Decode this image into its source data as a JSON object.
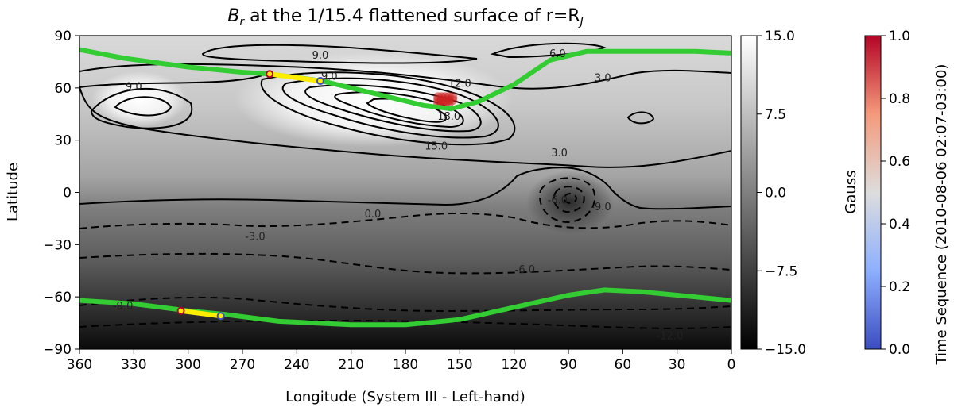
{
  "chart_data": {
    "type": "heatmap",
    "title": {
      "prefix": "B",
      "sub": "r",
      "mid": " at the 1/15.4 flattened surface of r=R",
      "sub2": "J"
    },
    "xlabel": "Longitude (System III - Left-hand)",
    "ylabel": "Latitude",
    "xlim": [
      360,
      0
    ],
    "ylim": [
      -90,
      90
    ],
    "xticks": [
      "360",
      "330",
      "300",
      "270",
      "240",
      "210",
      "180",
      "150",
      "120",
      "90",
      "60",
      "30",
      "0"
    ],
    "yticks": [
      "90",
      "60",
      "30",
      "0",
      "−30",
      "−60",
      "−90"
    ],
    "colorbar_gauss": {
      "label": "Gauss",
      "range": [
        -15,
        15
      ],
      "colormap": "gray",
      "ticks": [
        "15.0",
        "7.5",
        "0.0",
        "−7.5",
        "−15.0"
      ]
    },
    "colorbar_time": {
      "label": "Time Sequence (2010-08-06 02:07-03:00)",
      "range": [
        0,
        1
      ],
      "colormap": "coolwarm",
      "ticks": [
        "1.0",
        "0.8",
        "0.6",
        "0.4",
        "0.2",
        "0.0"
      ]
    },
    "contour_labels": [
      {
        "text": "9.0",
        "lon": 227,
        "lat": 79
      },
      {
        "text": "9.0",
        "lon": 222,
        "lat": 67
      },
      {
        "text": "6.0",
        "lon": 96,
        "lat": 80
      },
      {
        "text": "3.0",
        "lon": 71,
        "lat": 66
      },
      {
        "text": "9.0",
        "lon": 330,
        "lat": 61
      },
      {
        "text": "12.0",
        "lon": 150,
        "lat": 63
      },
      {
        "text": "18.0",
        "lon": 156,
        "lat": 44
      },
      {
        "text": "15.0",
        "lon": 163,
        "lat": 27
      },
      {
        "text": "3.0",
        "lon": 95,
        "lat": 23
      },
      {
        "text": "0.0",
        "lon": 198,
        "lat": -12
      },
      {
        "text": "-6.0",
        "lon": 96,
        "lat": -4
      },
      {
        "text": "-9.0",
        "lon": 72,
        "lat": -8
      },
      {
        "text": "-3.0",
        "lon": 263,
        "lat": -25
      },
      {
        "text": "-6.0",
        "lon": 114,
        "lat": -44
      },
      {
        "text": "-9.0",
        "lon": 336,
        "lat": -65
      },
      {
        "text": "-12.0",
        "lon": 34,
        "lat": -82
      }
    ],
    "footprints": [
      {
        "name": "north",
        "color": "#33cc33",
        "points": [
          [
            360,
            82
          ],
          [
            335,
            77
          ],
          [
            300,
            72
          ],
          [
            270,
            69
          ],
          [
            255,
            68
          ],
          [
            240,
            66
          ],
          [
            226,
            64
          ],
          [
            210,
            60
          ],
          [
            190,
            55
          ],
          [
            170,
            50
          ],
          [
            155,
            48
          ],
          [
            140,
            52
          ],
          [
            120,
            62
          ],
          [
            100,
            76
          ],
          [
            80,
            81
          ],
          [
            50,
            81
          ],
          [
            20,
            81
          ],
          [
            0,
            80
          ]
        ]
      },
      {
        "name": "south",
        "color": "#33cc33",
        "points": [
          [
            360,
            -62
          ],
          [
            330,
            -64
          ],
          [
            300,
            -68
          ],
          [
            280,
            -70
          ],
          [
            250,
            -74
          ],
          [
            210,
            -76
          ],
          [
            180,
            -76
          ],
          [
            150,
            -73
          ],
          [
            120,
            -66
          ],
          [
            90,
            -59
          ],
          [
            70,
            -56
          ],
          [
            50,
            -57
          ],
          [
            20,
            -60
          ],
          [
            0,
            -62
          ]
        ]
      }
    ],
    "tracks": [
      {
        "name": "north-track",
        "color": "#ffee00",
        "lon_start": 255,
        "lat_start": 68,
        "lon_end": 227,
        "lat_end": 64
      },
      {
        "name": "south-track",
        "color": "#ffee00",
        "lon_start": 304,
        "lat_start": -68,
        "lon_end": 282,
        "lat_end": -71
      }
    ],
    "markers": [
      {
        "lon": 255,
        "lat": 68,
        "t": 1.0
      },
      {
        "lon": 227,
        "lat": 64,
        "t": 0.0
      },
      {
        "lon": 304,
        "lat": -68,
        "t": 1.0
      },
      {
        "lon": 282,
        "lat": -71,
        "t": 0.0
      }
    ],
    "spot": {
      "lon": 158,
      "lat": 53,
      "color": "#cc2222"
    }
  }
}
